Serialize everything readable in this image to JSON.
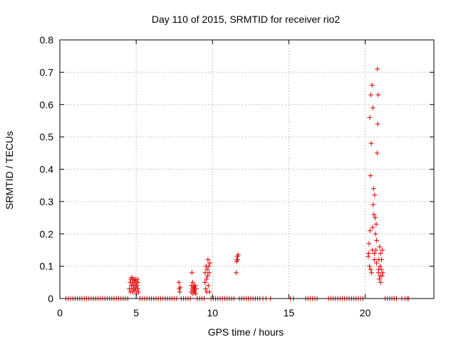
{
  "chart_data": {
    "type": "scatter",
    "title": "Day 110 of 2015, SRMTID for receiver rio2",
    "xlabel": "GPS time / hours",
    "ylabel": "SRMTID / TECUs",
    "xlim": [
      0,
      24.5
    ],
    "ylim": [
      0,
      0.8
    ],
    "xticks": [
      0,
      5,
      10,
      15,
      20
    ],
    "yticks": [
      0,
      0.1,
      0.2,
      0.3,
      0.4,
      0.5,
      0.6,
      0.7,
      0.8
    ],
    "grid": true,
    "marker": "plus",
    "marker_color": "#e00000",
    "series": [
      {
        "points": [
          [
            0.4,
            0
          ],
          [
            0.55,
            0
          ],
          [
            0.7,
            0
          ],
          [
            0.85,
            0
          ],
          [
            1.0,
            0
          ],
          [
            1.15,
            0
          ],
          [
            1.3,
            0
          ],
          [
            1.45,
            0
          ],
          [
            1.6,
            0
          ],
          [
            1.75,
            0
          ],
          [
            1.9,
            0
          ],
          [
            2.05,
            0
          ],
          [
            2.2,
            0
          ],
          [
            2.35,
            0
          ],
          [
            2.5,
            0
          ],
          [
            2.65,
            0
          ],
          [
            2.8,
            0
          ],
          [
            2.95,
            0
          ],
          [
            3.1,
            0
          ],
          [
            3.25,
            0
          ],
          [
            3.4,
            0
          ],
          [
            3.55,
            0
          ],
          [
            3.7,
            0
          ],
          [
            3.85,
            0
          ],
          [
            4.0,
            0
          ],
          [
            4.15,
            0
          ],
          [
            4.3,
            0
          ],
          [
            4.45,
            0
          ],
          [
            4.55,
            0.03
          ],
          [
            4.6,
            0.05
          ],
          [
            4.62,
            0.02
          ],
          [
            4.65,
            0.06
          ],
          [
            4.68,
            0.04
          ],
          [
            4.7,
            0.03
          ],
          [
            4.72,
            0.065
          ],
          [
            4.75,
            0.05
          ],
          [
            4.78,
            0.02
          ],
          [
            4.8,
            0.04
          ],
          [
            4.82,
            0.06
          ],
          [
            4.85,
            0.03
          ],
          [
            4.88,
            0.055
          ],
          [
            4.9,
            0.045
          ],
          [
            4.92,
            0.025
          ],
          [
            4.95,
            0.06
          ],
          [
            4.98,
            0.035
          ],
          [
            5.0,
            0.05
          ],
          [
            5.02,
            0.015
          ],
          [
            5.05,
            0.04
          ],
          [
            5.08,
            0.06
          ],
          [
            5.1,
            0.03
          ],
          [
            5.12,
            0.05
          ],
          [
            5.15,
            0.02
          ],
          [
            5.25,
            0
          ],
          [
            5.4,
            0
          ],
          [
            5.55,
            0
          ],
          [
            5.7,
            0
          ],
          [
            5.85,
            0
          ],
          [
            6.0,
            0
          ],
          [
            6.15,
            0
          ],
          [
            6.3,
            0
          ],
          [
            6.45,
            0
          ],
          [
            6.6,
            0
          ],
          [
            6.75,
            0
          ],
          [
            6.9,
            0
          ],
          [
            7.05,
            0
          ],
          [
            7.2,
            0
          ],
          [
            7.35,
            0
          ],
          [
            7.5,
            0
          ],
          [
            7.65,
            0
          ],
          [
            7.8,
            0.05
          ],
          [
            7.82,
            0.03
          ],
          [
            7.85,
            0.02
          ],
          [
            7.88,
            0.035
          ],
          [
            7.95,
            0
          ],
          [
            8.1,
            0
          ],
          [
            8.25,
            0
          ],
          [
            8.4,
            0
          ],
          [
            8.55,
            0
          ],
          [
            8.6,
            0.02
          ],
          [
            8.62,
            0.04
          ],
          [
            8.65,
            0.08
          ],
          [
            8.68,
            0.03
          ],
          [
            8.7,
            0.05
          ],
          [
            8.72,
            0.015
          ],
          [
            8.75,
            0.035
          ],
          [
            8.78,
            0.025
          ],
          [
            8.8,
            0.04
          ],
          [
            8.82,
            0.02
          ],
          [
            8.85,
            0.03
          ],
          [
            8.88,
            0.04
          ],
          [
            8.9,
            0.015
          ],
          [
            8.92,
            0.03
          ],
          [
            9.0,
            0
          ],
          [
            9.15,
            0
          ],
          [
            9.3,
            0
          ],
          [
            9.45,
            0
          ],
          [
            9.5,
            0.05
          ],
          [
            9.52,
            0.08
          ],
          [
            9.55,
            0.03
          ],
          [
            9.58,
            0.1
          ],
          [
            9.6,
            0.06
          ],
          [
            9.62,
            0.02
          ],
          [
            9.65,
            0.09
          ],
          [
            9.68,
            0.07
          ],
          [
            9.7,
            0.12
          ],
          [
            9.72,
            0.04
          ],
          [
            9.75,
            0.1
          ],
          [
            9.78,
            0.08
          ],
          [
            9.8,
            0.02
          ],
          [
            9.82,
            0.11
          ],
          [
            9.9,
            0
          ],
          [
            10.05,
            0
          ],
          [
            10.2,
            0
          ],
          [
            10.35,
            0
          ],
          [
            10.5,
            0
          ],
          [
            10.65,
            0
          ],
          [
            10.8,
            0
          ],
          [
            10.95,
            0
          ],
          [
            11.1,
            0
          ],
          [
            11.25,
            0
          ],
          [
            11.4,
            0
          ],
          [
            11.55,
            0.08
          ],
          [
            11.58,
            0.115
          ],
          [
            11.6,
            0.12
          ],
          [
            11.62,
            0.13
          ],
          [
            11.65,
            0.12
          ],
          [
            11.68,
            0.135
          ],
          [
            11.75,
            0
          ],
          [
            11.9,
            0
          ],
          [
            12.05,
            0
          ],
          [
            12.2,
            0
          ],
          [
            12.35,
            0
          ],
          [
            12.5,
            0
          ],
          [
            12.65,
            0
          ],
          [
            12.8,
            0
          ],
          [
            12.95,
            0
          ],
          [
            13.1,
            0
          ],
          [
            13.3,
            0
          ],
          [
            13.5,
            0
          ],
          [
            13.8,
            0
          ],
          [
            15.1,
            0
          ],
          [
            15.3,
            0
          ],
          [
            16.1,
            0
          ],
          [
            16.25,
            0
          ],
          [
            16.4,
            0
          ],
          [
            16.55,
            0
          ],
          [
            16.7,
            0
          ],
          [
            16.85,
            0
          ],
          [
            17.6,
            0
          ],
          [
            17.75,
            0
          ],
          [
            17.9,
            0
          ],
          [
            18.05,
            0
          ],
          [
            18.2,
            0
          ],
          [
            18.35,
            0
          ],
          [
            18.5,
            0
          ],
          [
            18.65,
            0
          ],
          [
            18.8,
            0
          ],
          [
            18.95,
            0
          ],
          [
            19.1,
            0
          ],
          [
            19.25,
            0
          ],
          [
            19.4,
            0
          ],
          [
            19.55,
            0
          ],
          [
            19.7,
            0
          ],
          [
            19.85,
            0
          ],
          [
            20.2,
            0.13
          ],
          [
            20.25,
            0.17
          ],
          [
            20.28,
            0.1
          ],
          [
            20.3,
            0.56
          ],
          [
            20.32,
            0.21
          ],
          [
            20.35,
            0.38
          ],
          [
            20.37,
            0.63
          ],
          [
            20.4,
            0.48
          ],
          [
            20.42,
            0.08
          ],
          [
            20.45,
            0.66
          ],
          [
            20.47,
            0.15
          ],
          [
            20.5,
            0.59
          ],
          [
            20.52,
            0.29
          ],
          [
            20.55,
            0.34
          ],
          [
            20.57,
            0.26
          ],
          [
            20.6,
            0.12
          ],
          [
            20.62,
            0.32
          ],
          [
            20.65,
            0.25
          ],
          [
            20.67,
            0.2
          ],
          [
            20.7,
            0.15
          ],
          [
            20.72,
            0.23
          ],
          [
            20.75,
            0.18
          ],
          [
            20.78,
            0.45
          ],
          [
            20.8,
            0.71
          ],
          [
            20.82,
            0.54
          ],
          [
            20.85,
            0.63
          ],
          [
            20.87,
            0.08
          ],
          [
            20.9,
            0.12
          ],
          [
            20.92,
            0.06
          ],
          [
            20.95,
            0.16
          ],
          [
            20.97,
            0.1
          ],
          [
            21.0,
            0.14
          ],
          [
            21.02,
            0.05
          ],
          [
            21.05,
            0.09
          ],
          [
            21.07,
            0.12
          ],
          [
            21.1,
            0.07
          ],
          [
            21.12,
            0.15
          ],
          [
            21.15,
            0.08
          ],
          [
            20.22,
            0.14
          ],
          [
            20.35,
            0.09
          ],
          [
            20.48,
            0.22
          ],
          [
            20.6,
            0.14
          ],
          [
            20.74,
            0.11
          ],
          [
            20.88,
            0.09
          ],
          [
            20.98,
            0.07
          ],
          [
            21.3,
            0
          ],
          [
            21.45,
            0
          ],
          [
            21.6,
            0
          ],
          [
            21.75,
            0
          ],
          [
            21.9,
            0
          ],
          [
            22.05,
            0
          ],
          [
            22.4,
            0
          ],
          [
            22.6,
            0
          ],
          [
            22.75,
            0
          ],
          [
            22.85,
            0
          ]
        ]
      }
    ]
  }
}
